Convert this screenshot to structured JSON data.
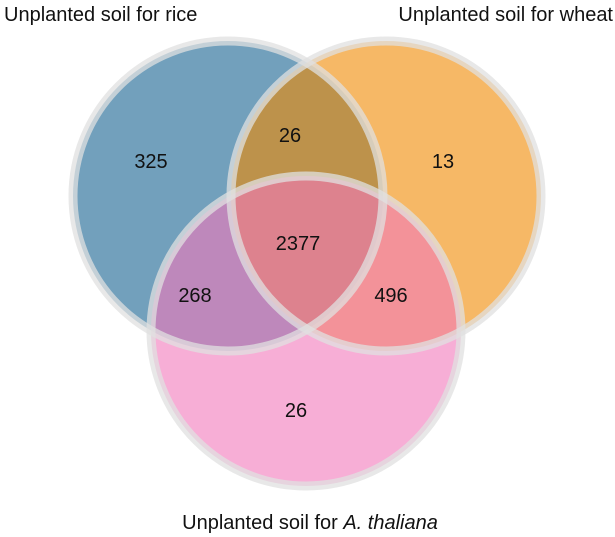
{
  "sets": [
    {
      "key": "rice",
      "label": "Unplanted soil for rice",
      "color": "#14618f"
    },
    {
      "key": "wheat",
      "label": "Unplanted soil for wheat",
      "color": "#f08800"
    },
    {
      "key": "thaliana",
      "label_prefix": "Unplanted soil for ",
      "label_italic": "A. thaliana",
      "color": "#f178bb"
    }
  ],
  "regions": {
    "rice_only": "325",
    "wheat_only": "13",
    "thaliana_only": "26",
    "rice_wheat": "26",
    "rice_thaliana": "268",
    "wheat_thaliana": "496",
    "all_three": "2377"
  }
}
